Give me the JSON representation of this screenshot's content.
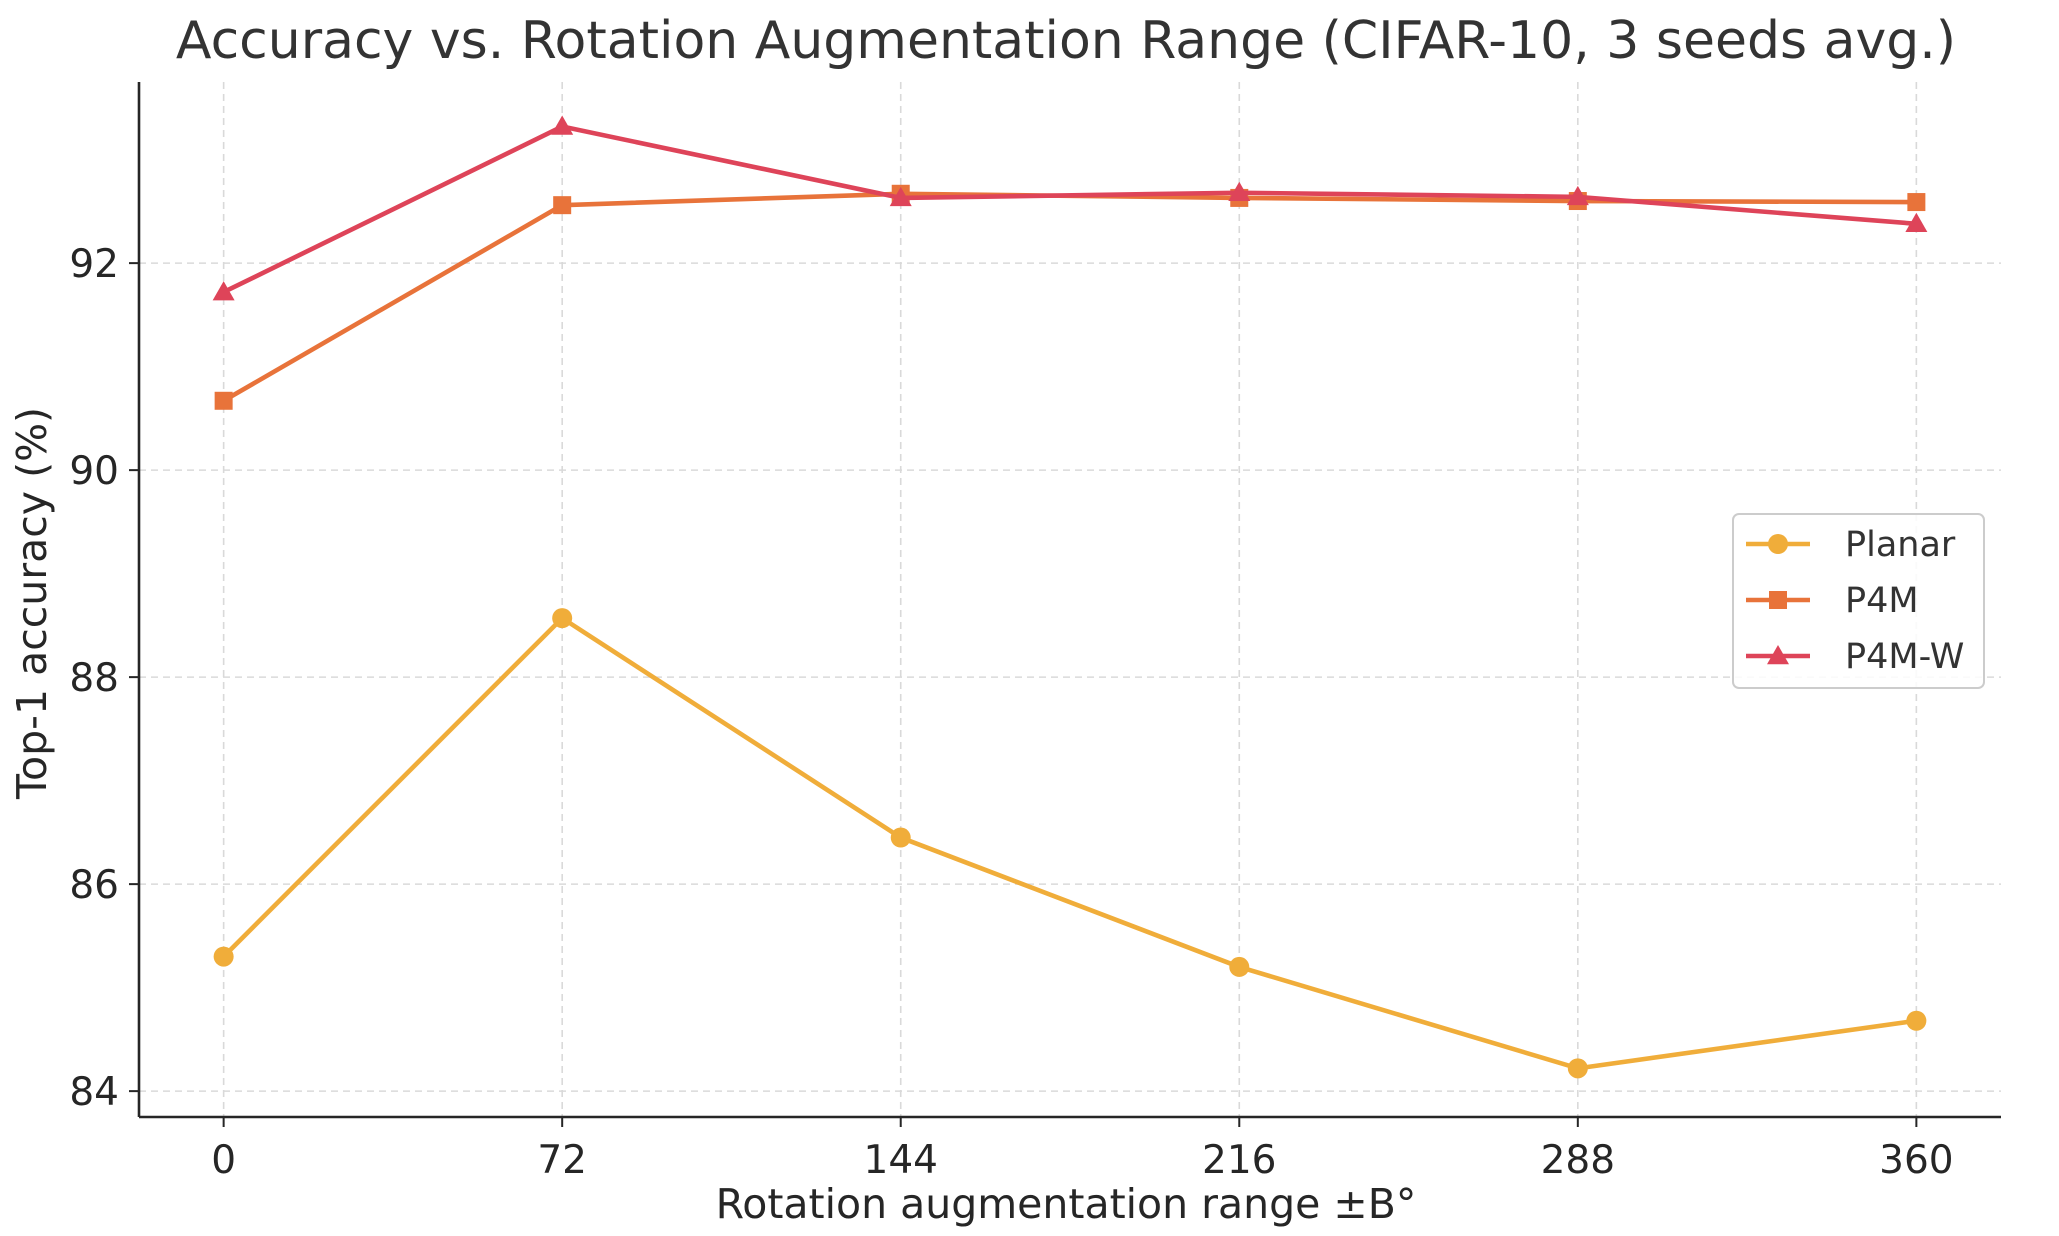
{
  "chart_data": {
    "type": "line",
    "title": "Accuracy vs. Rotation Augmentation Range (CIFAR-10, 3 seeds avg.)",
    "xlabel": "Rotation augmentation range ±B°",
    "ylabel": "Top-1 accuracy (%)",
    "x": [
      0,
      72,
      144,
      216,
      288,
      360
    ],
    "x_tick_labels": [
      "0",
      "72",
      "144",
      "216",
      "288",
      "360"
    ],
    "y_ticks": [
      84,
      86,
      88,
      90,
      92
    ],
    "y_tick_labels": [
      "84",
      "86",
      "88",
      "90",
      "92"
    ],
    "xlim": [
      -18,
      378
    ],
    "ylim": [
      83.75,
      93.75
    ],
    "grid": true,
    "legend_position": "center-right",
    "series": [
      {
        "name": "Planar",
        "marker": "circle",
        "color": "#f0ad3a",
        "values": [
          85.3,
          88.57,
          86.45,
          85.2,
          84.22,
          84.68
        ]
      },
      {
        "name": "P4M",
        "marker": "square",
        "color": "#e8733a",
        "values": [
          90.67,
          92.56,
          92.67,
          92.63,
          92.6,
          92.59
        ]
      },
      {
        "name": "P4M-W",
        "marker": "triangle",
        "color": "#de4459",
        "values": [
          91.72,
          93.32,
          92.63,
          92.68,
          92.64,
          92.38
        ]
      }
    ]
  }
}
